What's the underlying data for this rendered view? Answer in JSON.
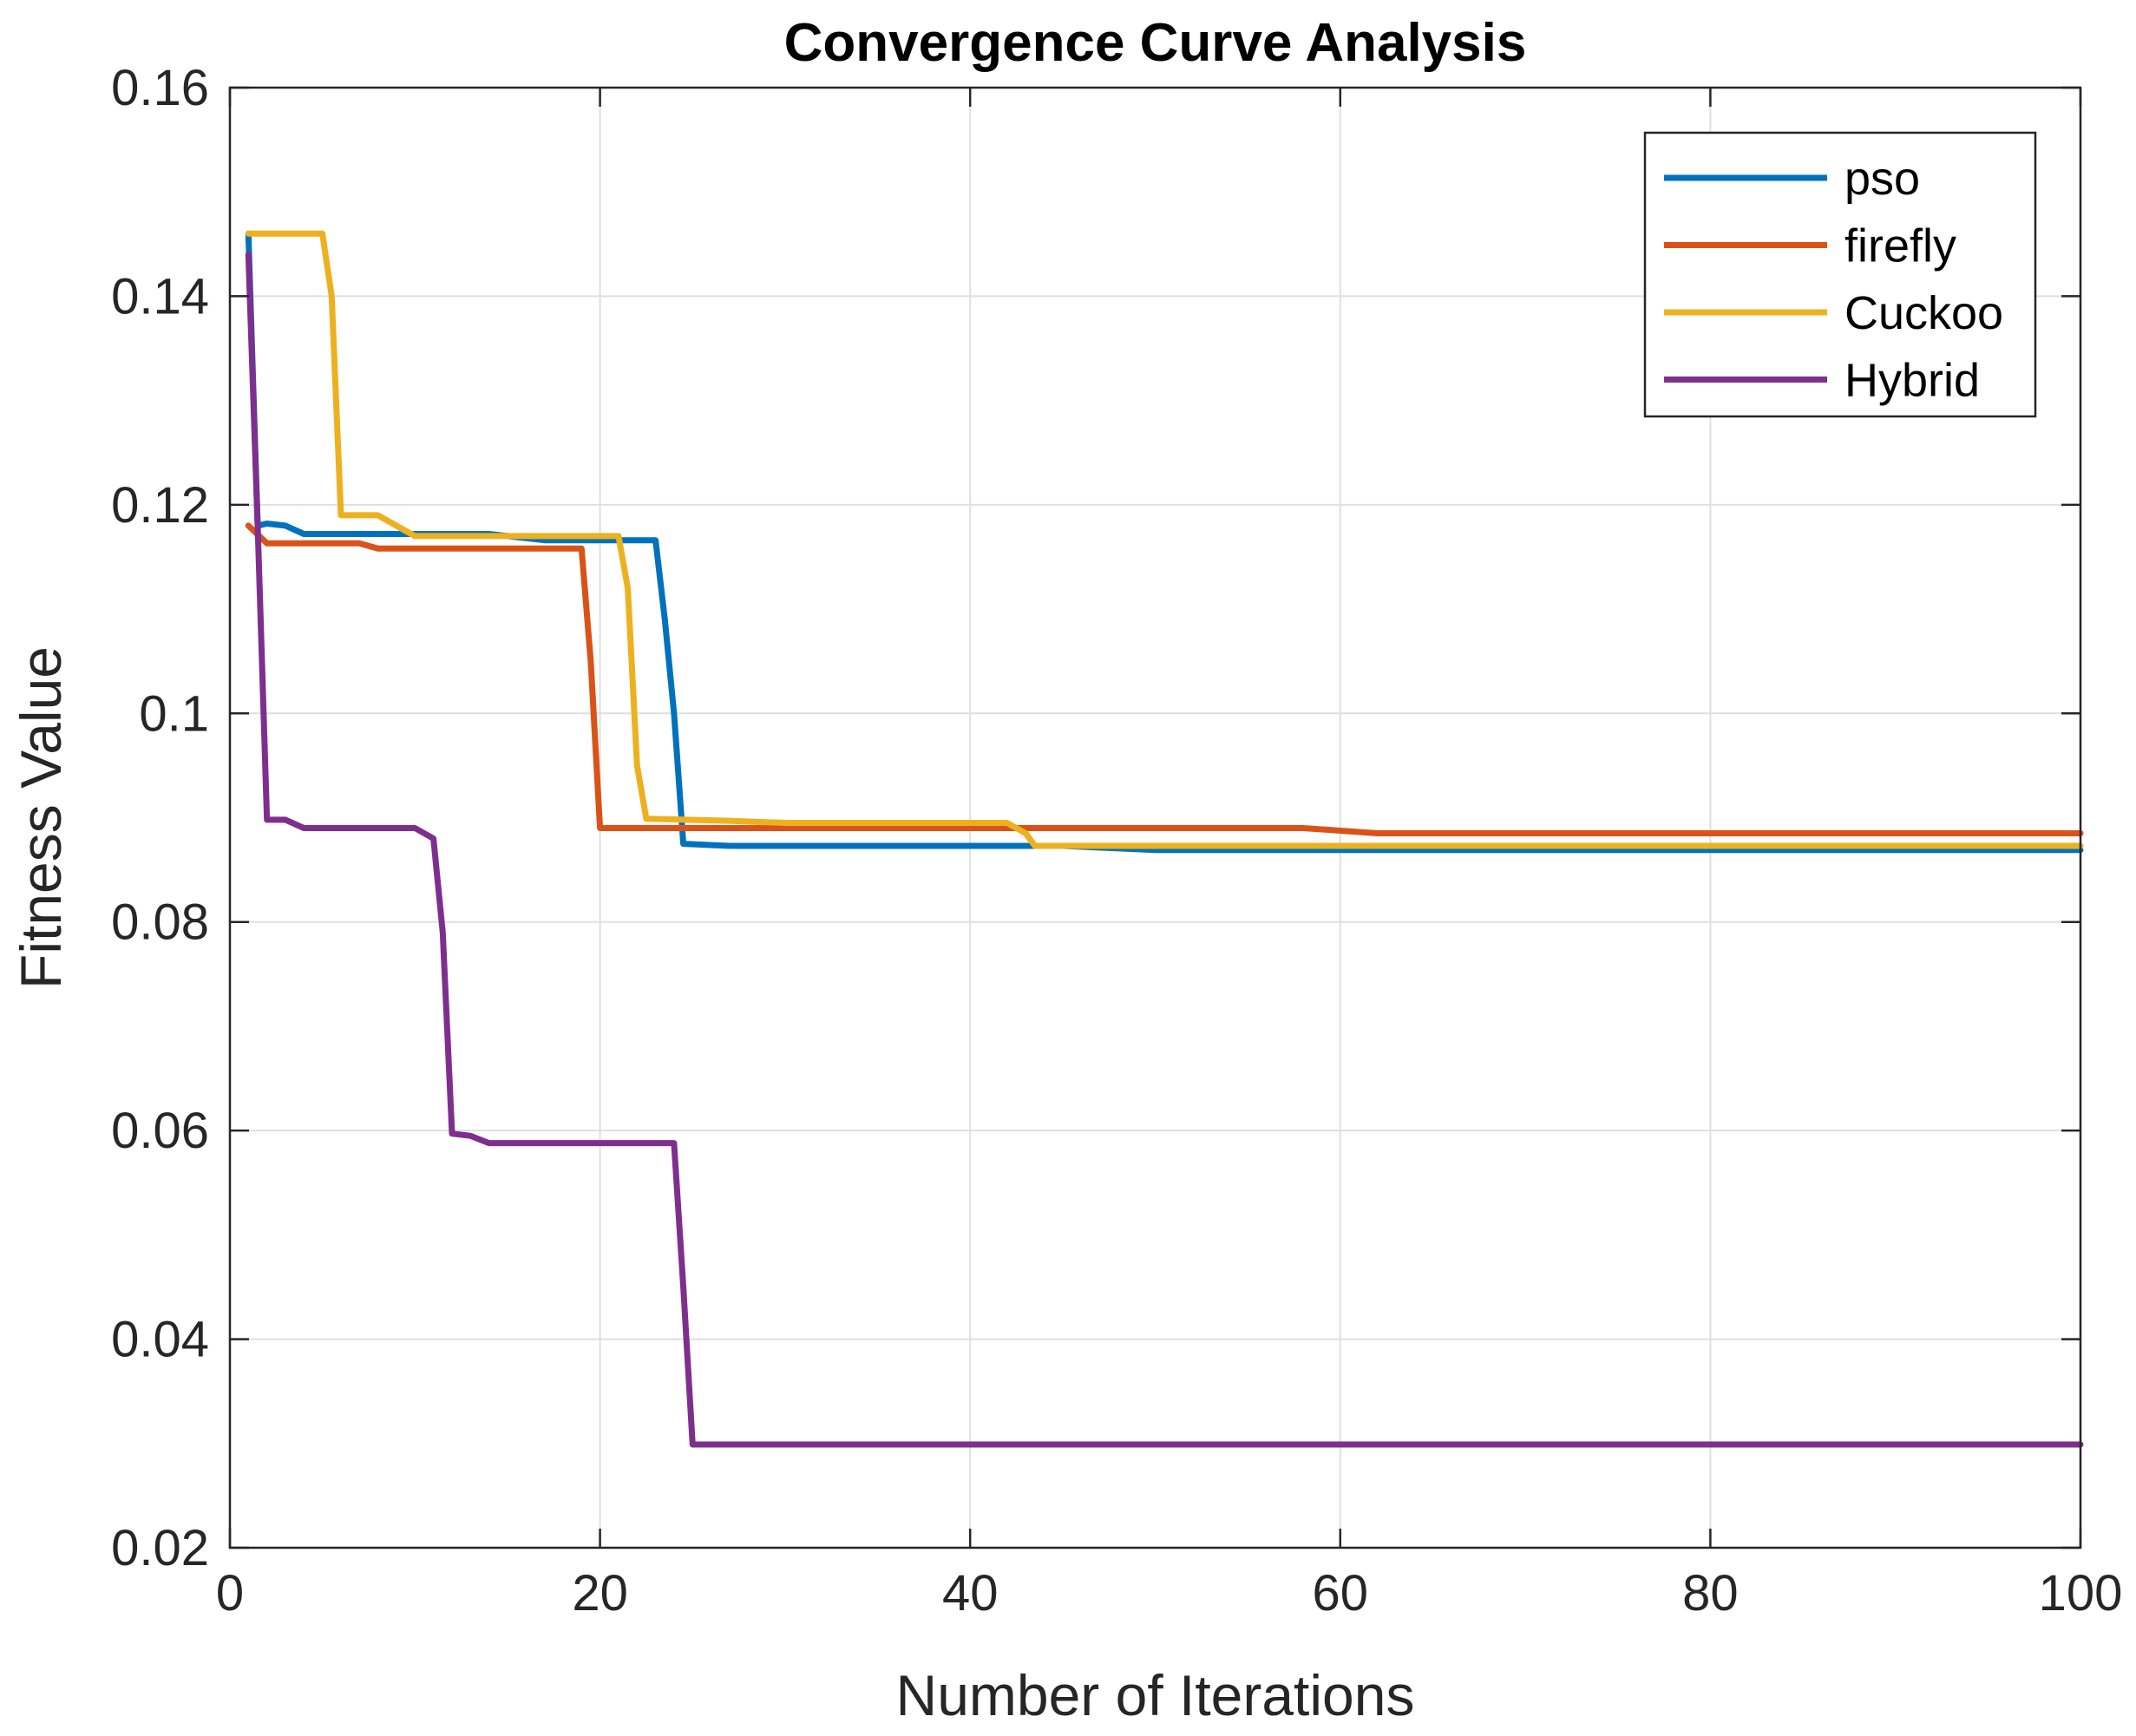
{
  "chart_data": {
    "type": "line",
    "title": "Convergence Curve Analysis",
    "xlabel": "Number of Iterations",
    "ylabel": "Fitness Value",
    "xlim": [
      0,
      100
    ],
    "ylim": [
      0.02,
      0.16
    ],
    "xticks": [
      0,
      20,
      40,
      60,
      80,
      100
    ],
    "xtick_labels": [
      "0",
      "20",
      "40",
      "60",
      "80",
      "100"
    ],
    "yticks": [
      0.02,
      0.04,
      0.06,
      0.08,
      0.1,
      0.12,
      0.14,
      0.16
    ],
    "ytick_labels": [
      "0.02",
      "0.04",
      "0.06",
      "0.08",
      "0.1",
      "0.12",
      "0.14",
      "0.16"
    ],
    "grid": true,
    "legend_position": "top-right",
    "series": [
      {
        "name": "pso",
        "color": "#0072BD",
        "x": [
          1,
          1.5,
          2,
          3,
          4,
          10,
          14,
          17,
          18,
          20,
          23,
          23.5,
          24,
          24.5,
          27,
          30,
          45,
          50,
          85,
          100
        ],
        "y": [
          0.146,
          0.118,
          0.1182,
          0.118,
          0.1172,
          0.1172,
          0.1172,
          0.1166,
          0.1166,
          0.1166,
          0.1166,
          0.109,
          0.1,
          0.0875,
          0.0873,
          0.0873,
          0.0873,
          0.0869,
          0.0869,
          0.0869
        ]
      },
      {
        "name": "firefly",
        "color": "#D95319",
        "x": [
          1,
          2,
          7,
          8,
          10,
          15,
          19,
          19.5,
          20,
          21,
          30,
          44,
          58,
          62,
          100
        ],
        "y": [
          0.118,
          0.1163,
          0.1163,
          0.1158,
          0.1158,
          0.1158,
          0.1158,
          0.105,
          0.089,
          0.089,
          0.089,
          0.089,
          0.089,
          0.0885,
          0.0885
        ]
      },
      {
        "name": "Cuckoo",
        "color": "#EDB120",
        "x": [
          1,
          2,
          5,
          5.5,
          6,
          8,
          9,
          10,
          15,
          21,
          21.5,
          22,
          22.5,
          27,
          30,
          42,
          43,
          43.5,
          45,
          80,
          85,
          100
        ],
        "y": [
          0.146,
          0.146,
          0.146,
          0.14,
          0.119,
          0.119,
          0.118,
          0.117,
          0.117,
          0.117,
          0.112,
          0.095,
          0.0899,
          0.0897,
          0.0895,
          0.0895,
          0.0885,
          0.0873,
          0.0873,
          0.0873,
          0.0873,
          0.0873
        ]
      },
      {
        "name": "Hybrid",
        "color": "#7E2F8E",
        "x": [
          1,
          1.5,
          2,
          3,
          4,
          10,
          11,
          11.5,
          12,
          13,
          14,
          20,
          24,
          24.5,
          25,
          30,
          50,
          100
        ],
        "y": [
          0.144,
          0.118,
          0.0898,
          0.0898,
          0.089,
          0.089,
          0.088,
          0.079,
          0.0597,
          0.0595,
          0.0588,
          0.0588,
          0.0588,
          0.045,
          0.0299,
          0.0299,
          0.0299,
          0.0299
        ]
      }
    ]
  }
}
